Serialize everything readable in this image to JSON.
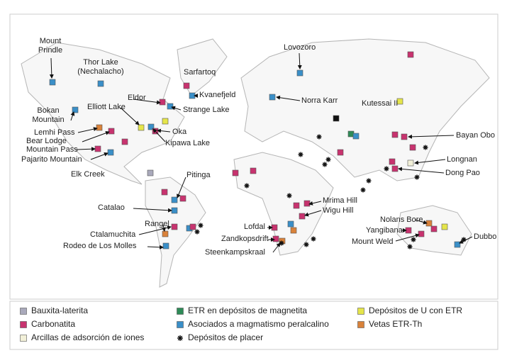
{
  "map_labels": [
    "Mount Prindle",
    "Thor Lake (Nechalacho)",
    "Sarfartoq",
    "Kvanefjeld",
    "Eldor",
    "Strange Lake",
    "Bokan Mountain",
    "Elliott Lake",
    "Lemhi Pass",
    "Bear Lodge",
    "Oka",
    "Kipawa Lake",
    "Mountain Pass",
    "Pajarito Mountain",
    "Elk Creek",
    "Pitinga",
    "Catalao",
    "Rangel",
    "Ctalamuchita",
    "Rodeo de Los Molles",
    "Lovozoro",
    "Norra Karr",
    "Kutessai II",
    "Bayan Obo",
    "Longnan",
    "Dong Pao",
    "Mrima Hill",
    "Wigu Hill",
    "Lofdal",
    "Zandkopsdrift",
    "Steenkampskraal",
    "Nolans Bore",
    "Yangibana",
    "Mount Weld",
    "Dubbo"
  ],
  "legend": [
    "Bauxita-laterita",
    "Carbonatita",
    "Arcillas de adsorción de iones",
    "ETR en depósitos de magnetita",
    "Asociados a magmatismo peralcalino",
    "Depósitos de placer",
    "Depósitos de U con ETR",
    "Vetas ETR-Th"
  ]
}
